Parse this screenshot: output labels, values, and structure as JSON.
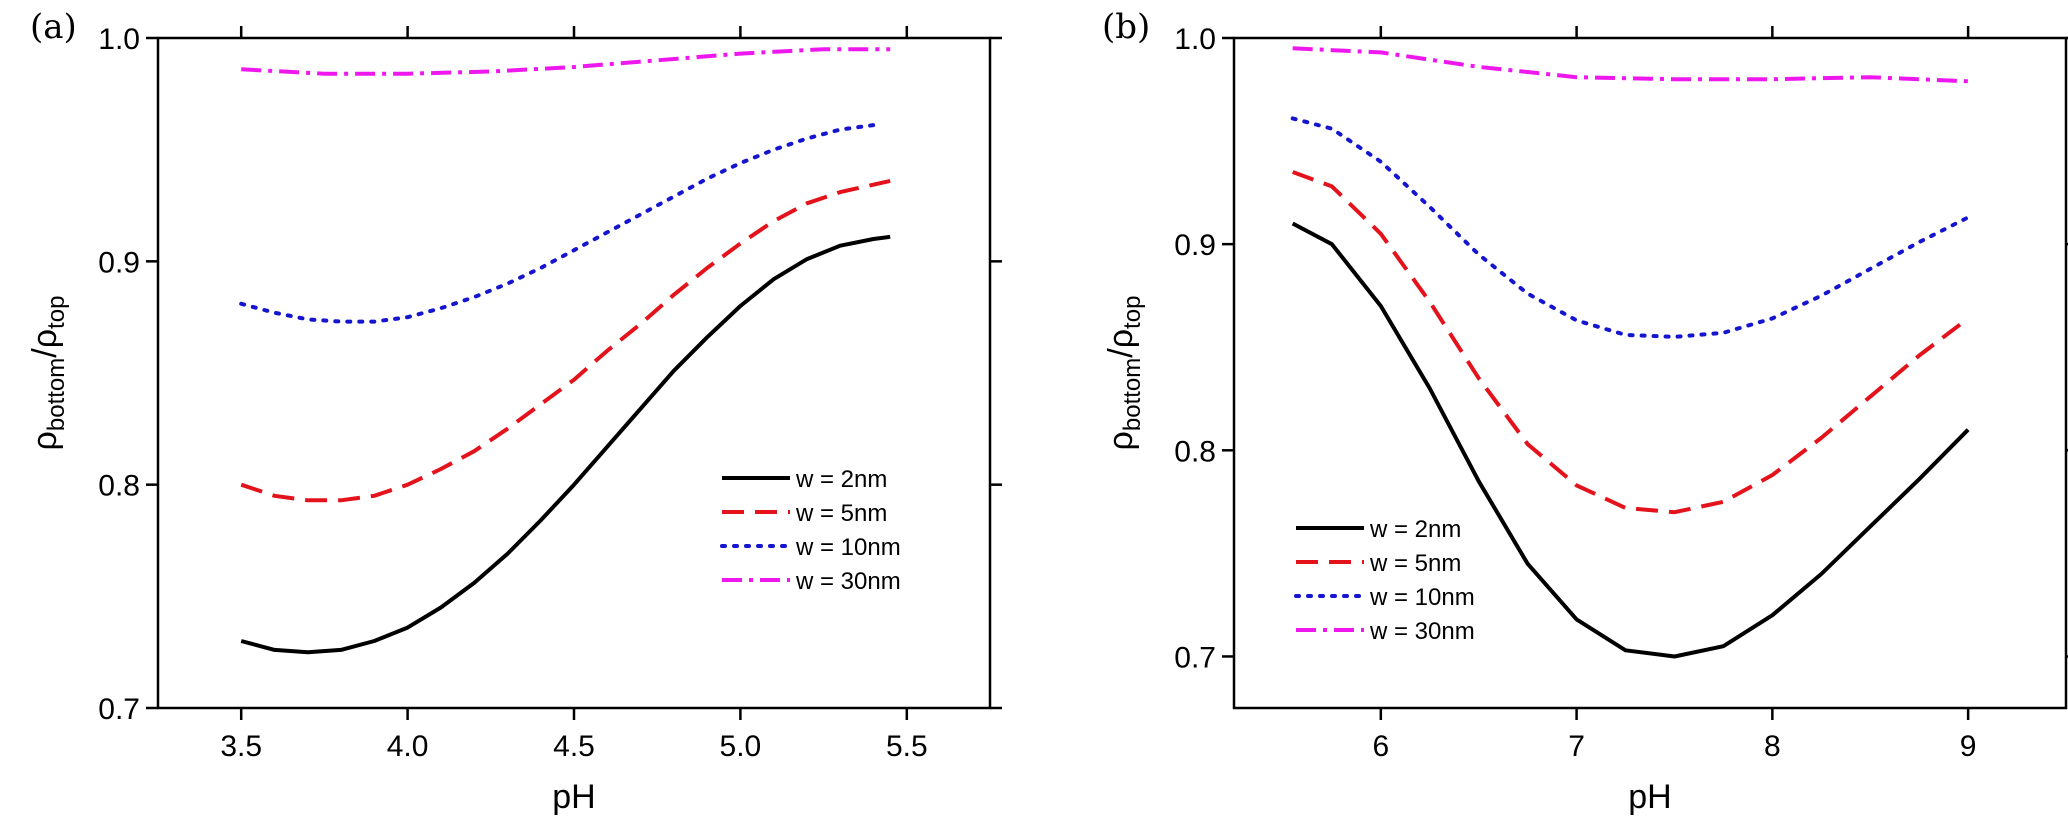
{
  "chart_data": [
    {
      "type": "line",
      "panel_label": "(a)",
      "xlabel": "pH",
      "ylabel": {
        "base": "ρ",
        "sub1": "bottom",
        "slash": "/ρ",
        "sub2": "top"
      },
      "xlim": [
        3.25,
        5.75
      ],
      "ylim": [
        0.7,
        1.0
      ],
      "xticks": [
        "3.5",
        "4.0",
        "4.5",
        "5.0",
        "5.5"
      ],
      "yticks": [
        "0.7",
        "0.8",
        "0.9",
        "1.0"
      ],
      "legend_position": "bottom-right",
      "grid": false,
      "series": [
        {
          "name": "w = 2nm",
          "color": "#000000",
          "style": "solid",
          "x": [
            3.5,
            3.6,
            3.7,
            3.8,
            3.9,
            4.0,
            4.1,
            4.2,
            4.3,
            4.4,
            4.5,
            4.6,
            4.7,
            4.8,
            4.9,
            5.0,
            5.1,
            5.2,
            5.3,
            5.4,
            5.45
          ],
          "y": [
            0.73,
            0.726,
            0.725,
            0.726,
            0.73,
            0.736,
            0.745,
            0.756,
            0.769,
            0.784,
            0.8,
            0.817,
            0.834,
            0.851,
            0.866,
            0.88,
            0.892,
            0.901,
            0.907,
            0.91,
            0.911
          ]
        },
        {
          "name": "w = 5nm",
          "color": "#e3121b",
          "style": "dashed",
          "x": [
            3.5,
            3.6,
            3.7,
            3.8,
            3.9,
            4.0,
            4.1,
            4.2,
            4.3,
            4.4,
            4.5,
            4.6,
            4.7,
            4.8,
            4.9,
            5.0,
            5.1,
            5.2,
            5.3,
            5.45
          ],
          "y": [
            0.8,
            0.795,
            0.793,
            0.793,
            0.795,
            0.8,
            0.807,
            0.815,
            0.825,
            0.836,
            0.847,
            0.86,
            0.872,
            0.885,
            0.897,
            0.908,
            0.918,
            0.926,
            0.931,
            0.936
          ]
        },
        {
          "name": "w = 10nm",
          "color": "#1515cf",
          "style": "dotted",
          "x": [
            3.5,
            3.6,
            3.7,
            3.8,
            3.9,
            4.0,
            4.1,
            4.2,
            4.3,
            4.4,
            4.5,
            4.6,
            4.7,
            4.8,
            4.9,
            5.0,
            5.1,
            5.2,
            5.3,
            5.4
          ],
          "y": [
            0.881,
            0.877,
            0.874,
            0.873,
            0.873,
            0.875,
            0.879,
            0.884,
            0.89,
            0.897,
            0.905,
            0.913,
            0.921,
            0.929,
            0.937,
            0.944,
            0.95,
            0.955,
            0.959,
            0.961
          ]
        },
        {
          "name": "w = 30nm",
          "color": "#ee18ee",
          "style": "dashdot",
          "x": [
            3.5,
            3.75,
            4.0,
            4.25,
            4.5,
            4.75,
            5.0,
            5.25,
            5.45
          ],
          "y": [
            0.986,
            0.984,
            0.984,
            0.985,
            0.987,
            0.99,
            0.993,
            0.995,
            0.995
          ]
        }
      ]
    },
    {
      "type": "line",
      "panel_label": "(b)",
      "xlabel": "pH",
      "ylabel": {
        "base": "ρ",
        "sub1": "bottom",
        "slash": "/ρ",
        "sub2": "top"
      },
      "xlim": [
        5.25,
        9.5
      ],
      "ylim": [
        0.675,
        1.0
      ],
      "xticks": [
        "6",
        "7",
        "8",
        "9"
      ],
      "yticks": [
        "0.7",
        "0.8",
        "0.9",
        "1.0"
      ],
      "legend_position": "bottom-left",
      "grid": false,
      "series": [
        {
          "name": "w = 2nm",
          "color": "#000000",
          "style": "solid",
          "x": [
            5.55,
            5.75,
            6.0,
            6.25,
            6.5,
            6.75,
            7.0,
            7.25,
            7.5,
            7.75,
            8.0,
            8.25,
            8.5,
            8.75,
            9.0
          ],
          "y": [
            0.91,
            0.9,
            0.87,
            0.83,
            0.785,
            0.745,
            0.718,
            0.703,
            0.7,
            0.705,
            0.72,
            0.74,
            0.763,
            0.786,
            0.81
          ]
        },
        {
          "name": "w = 5nm",
          "color": "#e3121b",
          "style": "dashed",
          "x": [
            5.55,
            5.75,
            6.0,
            6.25,
            6.5,
            6.75,
            7.0,
            7.25,
            7.5,
            7.75,
            8.0,
            8.25,
            8.5,
            8.75,
            9.0
          ],
          "y": [
            0.935,
            0.928,
            0.905,
            0.872,
            0.835,
            0.803,
            0.783,
            0.772,
            0.77,
            0.775,
            0.788,
            0.806,
            0.826,
            0.846,
            0.864
          ]
        },
        {
          "name": "w = 10nm",
          "color": "#1515cf",
          "style": "dotted",
          "x": [
            5.55,
            5.75,
            6.0,
            6.25,
            6.5,
            6.75,
            7.0,
            7.25,
            7.5,
            7.75,
            8.0,
            8.25,
            8.5,
            8.75,
            9.0
          ],
          "y": [
            0.961,
            0.956,
            0.94,
            0.918,
            0.895,
            0.876,
            0.863,
            0.856,
            0.855,
            0.857,
            0.864,
            0.875,
            0.888,
            0.901,
            0.913
          ]
        },
        {
          "name": "w = 30nm",
          "color": "#ee18ee",
          "style": "dashdot",
          "x": [
            5.55,
            6.0,
            6.5,
            7.0,
            7.5,
            8.0,
            8.5,
            9.0
          ],
          "y": [
            0.995,
            0.993,
            0.986,
            0.981,
            0.98,
            0.98,
            0.981,
            0.979
          ]
        }
      ]
    }
  ]
}
